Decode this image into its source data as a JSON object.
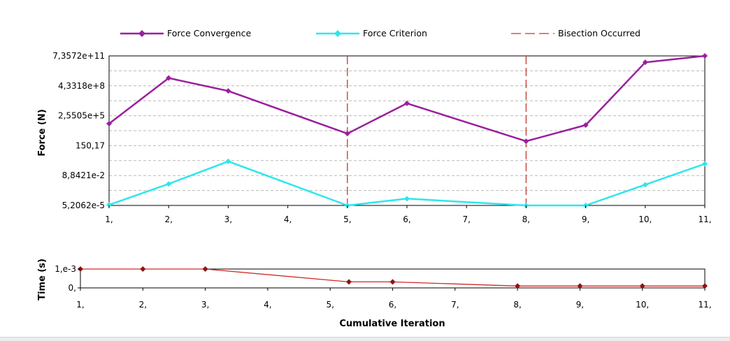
{
  "colors": {
    "convergence": "#9b1f9e",
    "criterion": "#2ee6ee",
    "bisection": "#c0392b",
    "time_line": "#d12a2a",
    "time_marker": "#8b1414",
    "grid": "#b9b9b9"
  },
  "chart_data": [
    {
      "type": "line",
      "ylabel": "Force (N)",
      "xlabel": "",
      "y_scale": "log",
      "x_ticks": [
        {
          "value": 1,
          "label": "1,"
        },
        {
          "value": 2,
          "label": "2,"
        },
        {
          "value": 3,
          "label": "3,"
        },
        {
          "value": 4,
          "label": "4,"
        },
        {
          "value": 5,
          "label": "5,"
        },
        {
          "value": 6,
          "label": "6,"
        },
        {
          "value": 7,
          "label": "7,"
        },
        {
          "value": 8,
          "label": "8,"
        },
        {
          "value": 9,
          "label": "9,"
        },
        {
          "value": 10,
          "label": "10,"
        },
        {
          "value": 11,
          "label": "11,"
        }
      ],
      "xlim": [
        1,
        11
      ],
      "y_ticks": [
        {
          "value": 5.2062e-05,
          "label": "5,2062e-5"
        },
        {
          "value": 0.088421,
          "label": "8,8421e-2"
        },
        {
          "value": 150.17,
          "label": "150,17"
        },
        {
          "value": 255050.0,
          "label": "2,5505e+5"
        },
        {
          "value": 433180000.0,
          "label": "4,3318e+8"
        },
        {
          "value": 735720000000.0,
          "label": "7,3572e+11"
        }
      ],
      "ylim": [
        5.2062e-05,
        735720000000.0
      ],
      "legend": [
        {
          "label": "Force Convergence",
          "series": "force_convergence"
        },
        {
          "label": "Force Criterion",
          "series": "force_criterion"
        },
        {
          "label": "Bisection Occurred",
          "series": "bisection"
        }
      ],
      "legend_position": "top",
      "grid": true,
      "series": [
        {
          "key": "force_convergence",
          "name": "Force Convergence",
          "x": [
            1,
            2,
            3,
            5,
            6,
            8,
            9,
            10,
            11
          ],
          "y": [
            35000,
            3000000000.0,
            120000000.0,
            3000,
            5500000.0,
            450,
            25000,
            150000000000.0,
            735720000000.0
          ]
        },
        {
          "key": "force_criterion",
          "name": "Force Criterion",
          "x": [
            1,
            2,
            3,
            5,
            6,
            8,
            9,
            10,
            11
          ],
          "y": [
            6e-05,
            0.011,
            3.0,
            5.2062e-05,
            0.00028,
            5.2062e-05,
            5.2062e-05,
            0.009,
            1.6
          ]
        }
      ],
      "bisections": [
        5,
        8
      ]
    },
    {
      "type": "line",
      "ylabel": "Time (s)",
      "xlabel": "Cumulative Iteration",
      "x_ticks": [
        {
          "value": 1,
          "label": "1,"
        },
        {
          "value": 2,
          "label": "2,"
        },
        {
          "value": 3,
          "label": "3,"
        },
        {
          "value": 4,
          "label": "4,"
        },
        {
          "value": 5,
          "label": "5,"
        },
        {
          "value": 6,
          "label": "6,"
        },
        {
          "value": 7,
          "label": "7,"
        },
        {
          "value": 8,
          "label": "8,"
        },
        {
          "value": 9,
          "label": "9,"
        },
        {
          "value": 10,
          "label": "10,"
        },
        {
          "value": 11,
          "label": "11,"
        }
      ],
      "xlim": [
        1,
        11
      ],
      "y_ticks": [
        {
          "value": 0,
          "label": "0,"
        },
        {
          "value": 0.001,
          "label": "1,e-3"
        }
      ],
      "ylim": [
        0,
        0.001
      ],
      "grid": false,
      "series": [
        {
          "key": "time",
          "name": "",
          "x": [
            1,
            2,
            3,
            5.3,
            6,
            8,
            9,
            10,
            11
          ],
          "y": [
            0.001,
            0.001,
            0.001,
            0.00032,
            0.00032,
            0.0001,
            0.0001,
            0.0001,
            0.0001
          ]
        }
      ]
    }
  ]
}
